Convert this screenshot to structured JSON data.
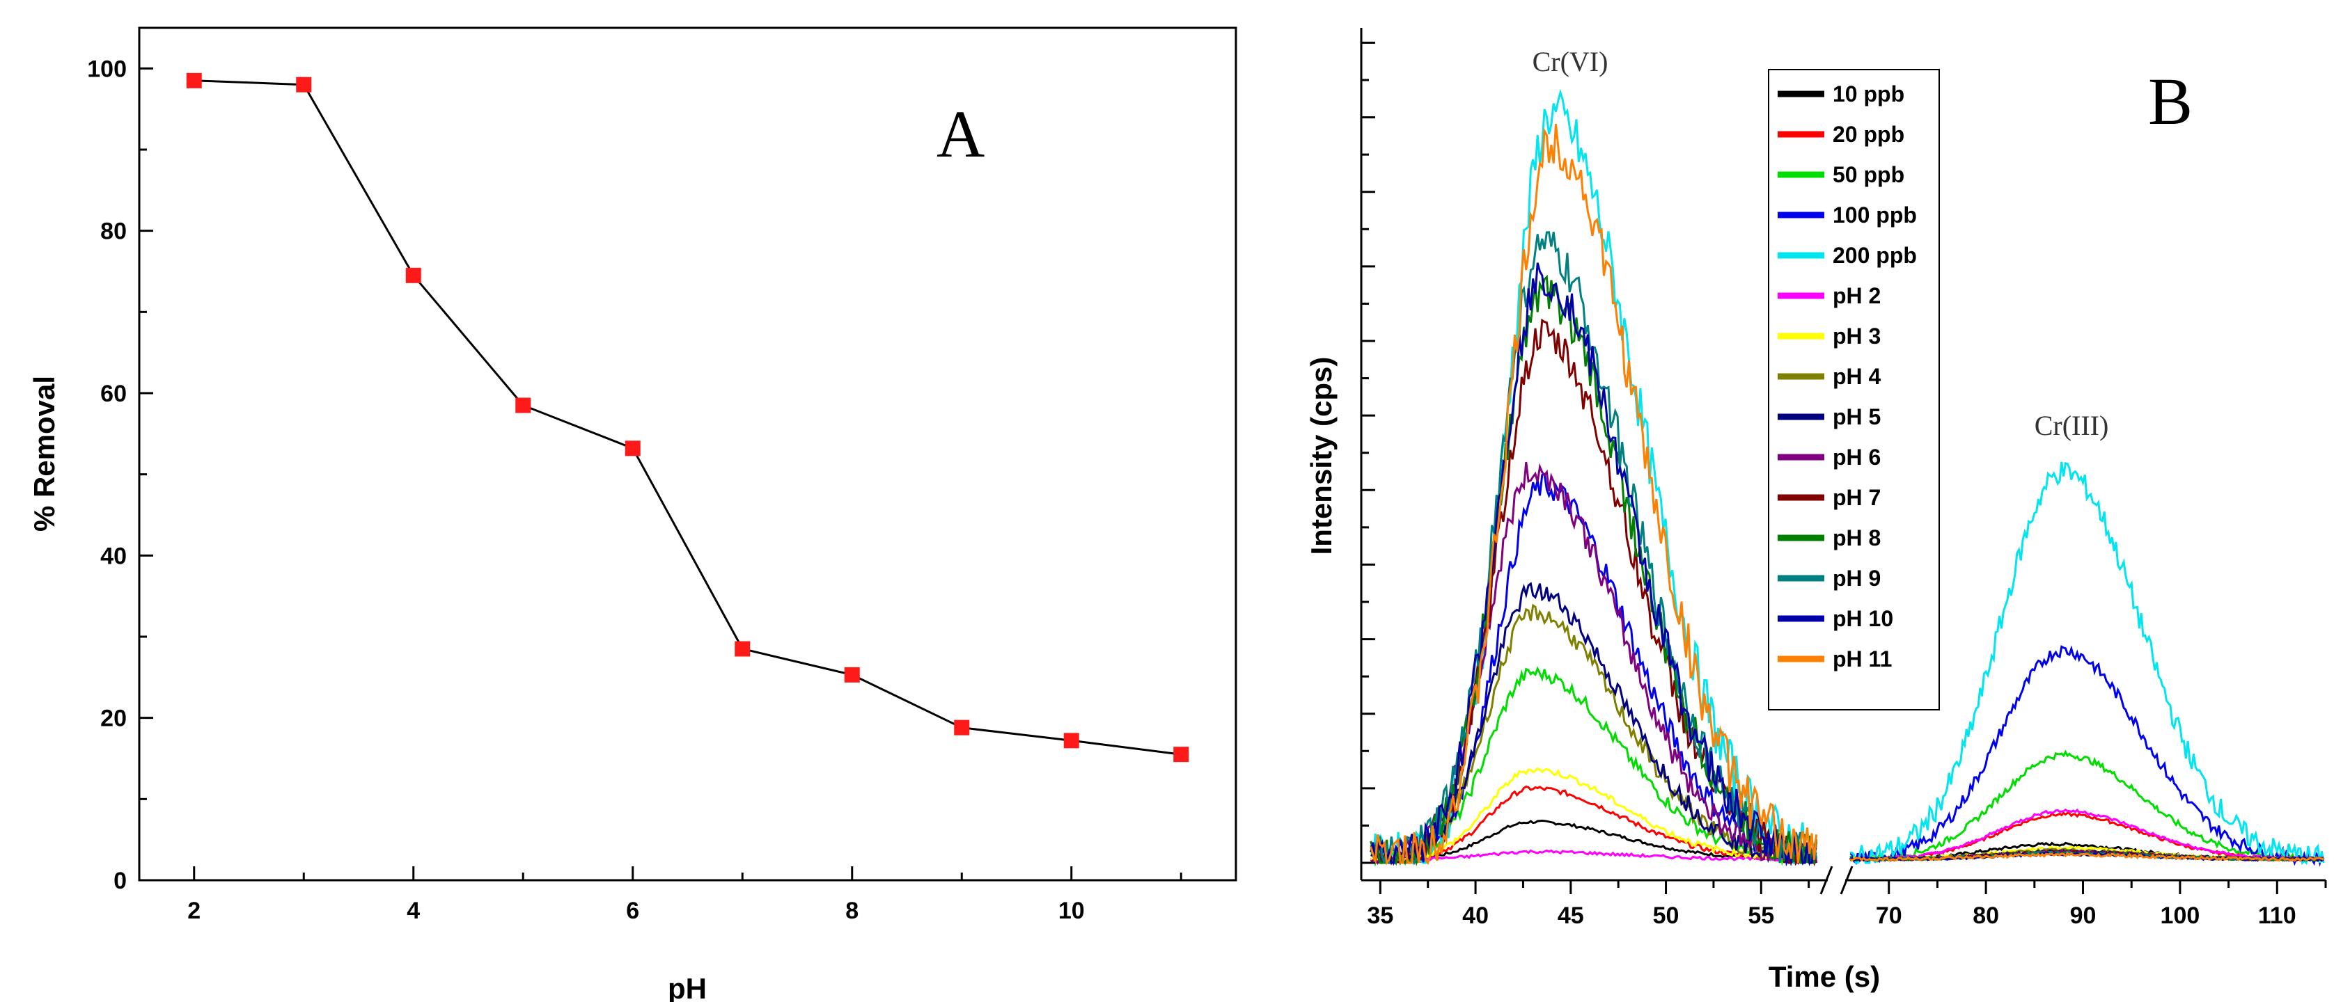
{
  "chart_data": [
    {
      "type": "line",
      "panel": "A",
      "xlabel": "pH",
      "ylabel": "% Removal",
      "xlim": [
        1.5,
        11.5
      ],
      "ylim": [
        0,
        105
      ],
      "xticks": [
        2,
        4,
        6,
        8,
        10
      ],
      "yticks": [
        0,
        20,
        40,
        60,
        80,
        100
      ],
      "x": [
        2,
        3,
        4,
        5,
        6,
        7,
        8,
        9,
        10,
        11
      ],
      "y": [
        98.5,
        98.0,
        74.5,
        58.5,
        53.2,
        28.5,
        25.3,
        18.8,
        17.2,
        15.5
      ],
      "line_color": "#000000",
      "marker_color": "#ff1a1a",
      "grid": false
    },
    {
      "type": "line",
      "panel": "B",
      "xlabel": "Time (s)",
      "ylabel": "Intensity (cps)",
      "axis_break": true,
      "xlim_left": [
        34,
        58.5
      ],
      "xlim_right": [
        65.5,
        115
      ],
      "xticks_left": [
        35,
        40,
        45,
        50,
        55
      ],
      "xticks_right": [
        70,
        80,
        90,
        100,
        110
      ],
      "ylim": [
        0,
        112
      ],
      "annotations": [
        "Cr(VI)",
        "Cr(III)"
      ],
      "legend_placement": "top-center",
      "grid": false,
      "series": [
        {
          "name": "10 ppb",
          "color": "#000000",
          "peak1": [
            43,
            5.0
          ],
          "peak2": [
            87,
            2.0
          ]
        },
        {
          "name": "20 ppb",
          "color": "#ff0000",
          "peak1": [
            43,
            9.5
          ],
          "peak2": [
            88,
            6.0
          ]
        },
        {
          "name": "50 ppb",
          "color": "#00dd00",
          "peak1": [
            43,
            25.0
          ],
          "peak2": [
            88,
            14.0
          ]
        },
        {
          "name": "100 ppb",
          "color": "#0000ee",
          "peak1": [
            43.5,
            50.0
          ],
          "peak2": [
            88,
            28.0
          ]
        },
        {
          "name": "200 ppb",
          "color": "#00e5ee",
          "peak1": [
            44,
            100.0
          ],
          "peak2": [
            88,
            52.0
          ]
        },
        {
          "name": "pH 2",
          "color": "#ff00ff",
          "peak1": [
            43,
            1.0
          ],
          "peak2": [
            88,
            6.5
          ]
        },
        {
          "name": "pH 3",
          "color": "#ffff00",
          "peak1": [
            43,
            12.0
          ],
          "peak2": [
            88,
            1.5
          ]
        },
        {
          "name": "pH 4",
          "color": "#808000",
          "peak1": [
            43,
            33.0
          ],
          "peak2": [
            88,
            1.2
          ]
        },
        {
          "name": "pH 5",
          "color": "#000080",
          "peak1": [
            43,
            36.0
          ],
          "peak2": [
            88,
            1.0
          ]
        },
        {
          "name": "pH 6",
          "color": "#800080",
          "peak1": [
            43,
            52.0
          ],
          "peak2": [
            88,
            1.0
          ]
        },
        {
          "name": "pH 7",
          "color": "#800000",
          "peak1": [
            43.5,
            70.0
          ],
          "peak2": [
            88,
            0.9
          ]
        },
        {
          "name": "pH 8",
          "color": "#008000",
          "peak1": [
            43.5,
            76.0
          ],
          "peak2": [
            88,
            0.8
          ]
        },
        {
          "name": "pH 9",
          "color": "#008080",
          "peak1": [
            43.5,
            82.0
          ],
          "peak2": [
            88,
            0.8
          ]
        },
        {
          "name": "pH 10",
          "color": "#0000aa",
          "peak1": [
            43.5,
            78.0
          ],
          "peak2": [
            88,
            0.7
          ]
        },
        {
          "name": "pH 11",
          "color": "#ff8000",
          "peak1": [
            44,
            96.0
          ],
          "peak2": [
            88,
            0.6
          ]
        }
      ]
    }
  ]
}
